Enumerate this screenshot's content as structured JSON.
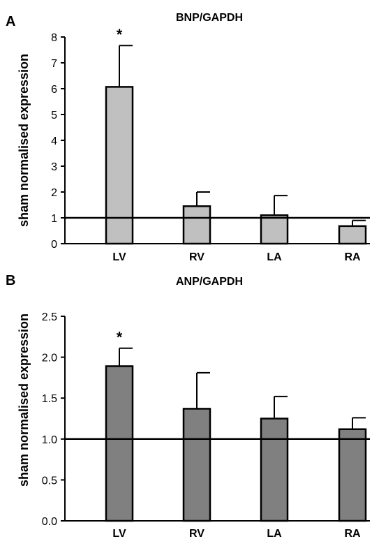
{
  "chart_data": [
    {
      "type": "bar",
      "panel": "A",
      "title": "BNP/GAPDH",
      "ylabel": "sham normalised expression",
      "xlabel": "",
      "categories": [
        "LV",
        "RV",
        "LA",
        "RA"
      ],
      "values": [
        6.07,
        1.45,
        1.1,
        0.68
      ],
      "errors": [
        1.6,
        0.55,
        0.76,
        0.22
      ],
      "significance": [
        "*",
        "",
        "",
        ""
      ],
      "ylim": [
        0,
        8
      ],
      "yticks": [
        "0",
        "1",
        "2",
        "3",
        "4",
        "5",
        "6",
        "7",
        "8"
      ],
      "reference_line": 1,
      "bar_color": "#c0c0c0",
      "grid": false
    },
    {
      "type": "bar",
      "panel": "B",
      "title": "ANP/GAPDH",
      "ylabel": "sham normalised expression",
      "xlabel": "",
      "categories": [
        "LV",
        "RV",
        "LA",
        "RA"
      ],
      "values": [
        1.89,
        1.37,
        1.25,
        1.12
      ],
      "errors": [
        0.22,
        0.44,
        0.27,
        0.14
      ],
      "significance": [
        "*",
        "",
        "",
        ""
      ],
      "ylim": [
        0,
        2.5
      ],
      "yticks": [
        "0.0",
        "0.5",
        "1.0",
        "1.5",
        "2.0",
        "2.5"
      ],
      "reference_line": 1,
      "bar_color": "#808080",
      "grid": false
    }
  ]
}
